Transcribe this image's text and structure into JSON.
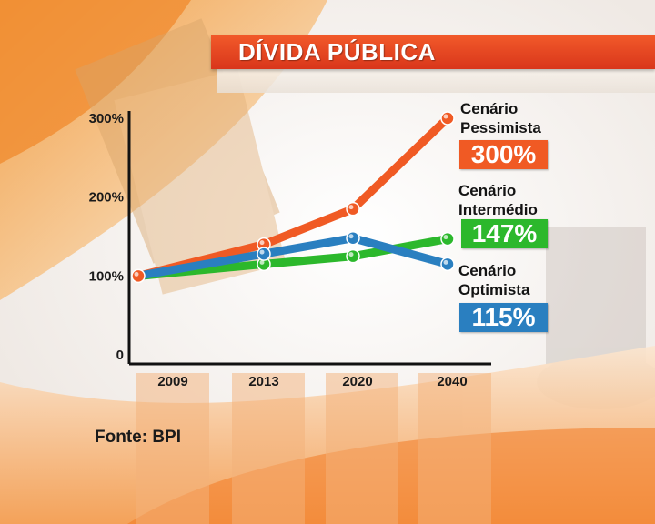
{
  "title": "DÍVIDA PÚBLICA",
  "source": "Fonte: BPI",
  "colors": {
    "pessimista": "#f05a24",
    "intermedio": "#2cb82c",
    "optimista": "#2a7fc0",
    "title_bar": "#e2401f"
  },
  "scenarios": {
    "pessimista": {
      "line1": "Cenário",
      "line2": "Pessimista",
      "value_label": "300%"
    },
    "intermedio": {
      "line1": "Cenário",
      "line2": "Intermédio",
      "value_label": "147%"
    },
    "optimista": {
      "line1": "Cenário",
      "line2": "Optimista",
      "value_label": "115%"
    }
  },
  "chart_data": {
    "type": "line",
    "title": "DÍVIDA PÚBLICA",
    "categories": [
      "2009",
      "2013",
      "2020",
      "2040"
    ],
    "y_tick_labels": [
      "0",
      "100%",
      "200%",
      "300%"
    ],
    "y_ticks": [
      0,
      100,
      200,
      300
    ],
    "ylim": [
      0,
      300
    ],
    "grid": false,
    "series": [
      {
        "name": "Cenário Pessimista",
        "color": "#f05a24",
        "values": [
          100,
          140,
          185,
          300
        ]
      },
      {
        "name": "Cenário Intermédio",
        "color": "#2cb82c",
        "values": [
          100,
          115,
          125,
          147
        ]
      },
      {
        "name": "Cenário Optimista",
        "color": "#2a7fc0",
        "values": [
          100,
          128,
          148,
          115
        ]
      }
    ]
  }
}
